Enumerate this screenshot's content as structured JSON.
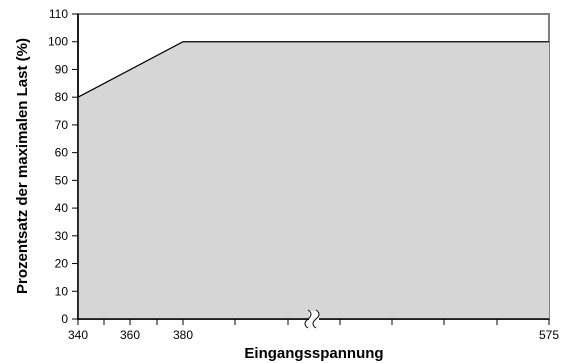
{
  "chart_data": {
    "type": "area",
    "xlabel": "Eingangsspannung",
    "ylabel": "Prozentsatz der maximalen Last (%)",
    "x_tick_labels": [
      "340",
      "360",
      "380",
      "575"
    ],
    "y_tick_labels": [
      "0",
      "10",
      "20",
      "30",
      "40",
      "50",
      "60",
      "70",
      "80",
      "90",
      "100",
      "110"
    ],
    "ylim": [
      0,
      110
    ],
    "x_axis_break": true,
    "grid": false,
    "series": [
      {
        "x": [
          340,
          380,
          575
        ],
        "y": [
          80,
          100,
          100
        ]
      }
    ],
    "colors": {
      "fill": "#d6d6d6",
      "line": "#000000",
      "frame": "#808080"
    }
  }
}
